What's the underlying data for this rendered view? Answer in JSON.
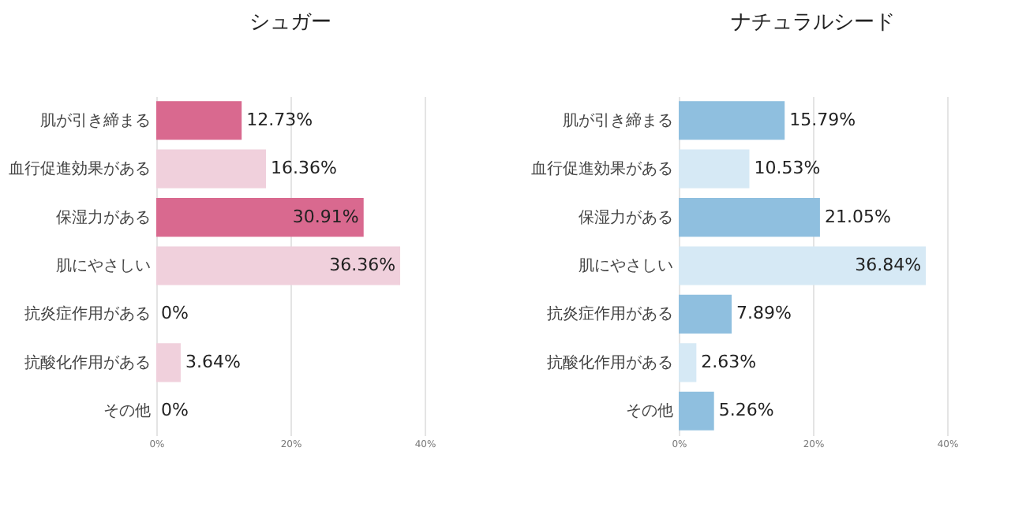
{
  "chart_data": [
    {
      "type": "bar",
      "orientation": "horizontal",
      "title": "シュガー",
      "categories": [
        "肌が引き締まる",
        "血行促進効果がある",
        "保湿力がある",
        "肌にやさしい",
        "抗炎症作用がある",
        "抗酸化作用がある",
        "その他"
      ],
      "values": [
        12.73,
        16.36,
        30.91,
        36.36,
        0,
        3.64,
        0
      ],
      "colors": [
        "#d9698f",
        "#f0d0dc",
        "#d9698f",
        "#f0d0dc",
        "#d9698f",
        "#f0d0dc",
        "#d9698f"
      ],
      "value_labels": [
        "12.73%",
        "16.36%",
        "30.91%",
        "36.36%",
        "0%",
        "3.64%",
        "0%"
      ],
      "xlim": [
        0,
        40
      ],
      "xticks": [
        {
          "value": 0,
          "label": "0%"
        },
        {
          "value": 20,
          "label": "20%"
        },
        {
          "value": 40,
          "label": "40%"
        }
      ],
      "grid": "x",
      "legend": false
    },
    {
      "type": "bar",
      "orientation": "horizontal",
      "title": "ナチュラルシード",
      "categories": [
        "肌が引き締まる",
        "血行促進効果がある",
        "保湿力がある",
        "肌にやさしい",
        "抗炎症作用がある",
        "抗酸化作用がある",
        "その他"
      ],
      "values": [
        15.79,
        10.53,
        21.05,
        36.84,
        7.89,
        2.63,
        5.26
      ],
      "colors": [
        "#8fbfdf",
        "#d6e9f5",
        "#8fbfdf",
        "#d6e9f5",
        "#8fbfdf",
        "#d6e9f5",
        "#8fbfdf"
      ],
      "value_labels": [
        "15.79%",
        "10.53%",
        "21.05%",
        "36.84%",
        "7.89%",
        "2.63%",
        "5.26%"
      ],
      "xlim": [
        0,
        40
      ],
      "xticks": [
        {
          "value": 0,
          "label": "0%"
        },
        {
          "value": 20,
          "label": "20%"
        },
        {
          "value": 40,
          "label": "40%"
        }
      ],
      "grid": "x",
      "legend": false
    }
  ]
}
